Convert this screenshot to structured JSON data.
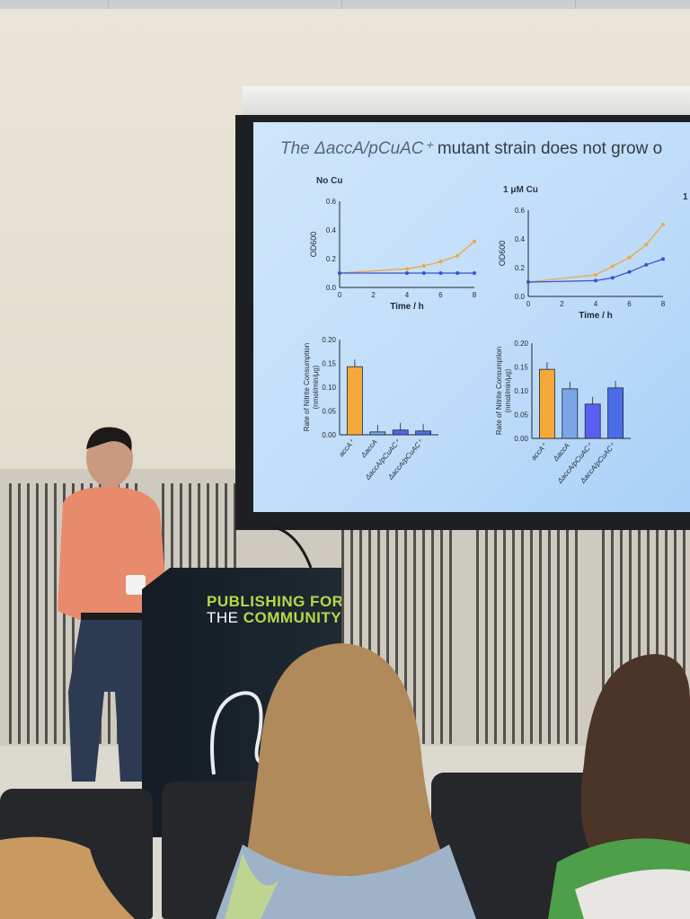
{
  "slide": {
    "title_italic": "The ΔaccA/pCuAC⁺",
    "title_rest": " mutant strain does not grow o",
    "panels": [
      {
        "label": "No Cu"
      },
      {
        "label": "1 μM Cu"
      },
      {
        "label": "1"
      }
    ],
    "line_axis": {
      "ylabel": "OD600",
      "xlabel": "Time / h",
      "yticks": [
        "0.6",
        "0.4",
        "0.2",
        "0.0"
      ],
      "xticks": [
        "0",
        "2",
        "4",
        "6",
        "8"
      ]
    },
    "bar_axis": {
      "ylabel_1": "Rate of Nitrite Consumption",
      "ylabel_2": "(nmol/min/μg)"
    },
    "bar_axis_left_ticks": [
      "0.20",
      "0.15",
      "0.10",
      "0.05",
      "0.00"
    ],
    "bar_axis_right_ticks": [
      "0.20",
      "0.15",
      "0.10",
      "0.05",
      "0.00"
    ],
    "strains": [
      "accA⁺",
      "ΔaccA",
      "ΔaccA/pCuAC⁺",
      "ΔaccA/pCuAC⁺"
    ]
  },
  "podium": {
    "line1": "PUBLISHING FOR",
    "line2_a": "THE ",
    "line2_b": "COMMUNITY"
  },
  "chart_data": [
    {
      "type": "line",
      "title": "No Cu",
      "xlabel": "Time / h",
      "ylabel": "OD600",
      "xlim": [
        0,
        8
      ],
      "ylim": [
        0,
        0.6
      ],
      "series": [
        {
          "values": [
            [
              0,
              0.1
            ],
            [
              4,
              0.13
            ],
            [
              5,
              0.15
            ],
            [
              6,
              0.18
            ],
            [
              7,
              0.22
            ],
            [
              8,
              0.32
            ]
          ],
          "color": "#f0a640"
        },
        {
          "values": [
            [
              0,
              0.1
            ],
            [
              4,
              0.1
            ],
            [
              5,
              0.1
            ],
            [
              6,
              0.1
            ],
            [
              7,
              0.1
            ],
            [
              8,
              0.1
            ]
          ],
          "color": "#3a4fd0"
        }
      ]
    },
    {
      "type": "line",
      "title": "1 μM Cu",
      "xlabel": "Time / h",
      "ylabel": "OD600",
      "xlim": [
        0,
        8
      ],
      "ylim": [
        0,
        0.6
      ],
      "series": [
        {
          "values": [
            [
              0,
              0.1
            ],
            [
              4,
              0.15
            ],
            [
              5,
              0.21
            ],
            [
              6,
              0.27
            ],
            [
              7,
              0.36
            ],
            [
              8,
              0.5
            ]
          ],
          "color": "#f0a640"
        },
        {
          "values": [
            [
              0,
              0.1
            ],
            [
              4,
              0.11
            ],
            [
              5,
              0.13
            ],
            [
              6,
              0.17
            ],
            [
              7,
              0.22
            ],
            [
              8,
              0.26
            ]
          ],
          "color": "#3a4fd0"
        }
      ]
    },
    {
      "type": "bar",
      "title": "No Cu",
      "ylabel": "Rate of Nitrite Consumption (nmol/min/μg)",
      "ylim": [
        0,
        0.2
      ],
      "categories": [
        "accA⁺",
        "ΔaccA",
        "ΔaccA/pCuAC⁺",
        "ΔaccA/pCuAC⁺"
      ],
      "values": [
        0.143,
        0.006,
        0.01,
        0.008
      ],
      "colors": [
        "#f3a93a",
        "#7aa6e8",
        "#5b5ef0",
        "#4b6ee8"
      ]
    },
    {
      "type": "bar",
      "title": "1 μM Cu",
      "ylabel": "Rate of Nitrite Consumption (nmol/min/μg)",
      "ylim": [
        0,
        0.2
      ],
      "categories": [
        "accA⁺",
        "ΔaccA",
        "ΔaccA/pCuAC⁺",
        "ΔaccA/pCuAC⁺"
      ],
      "values": [
        0.145,
        0.104,
        0.072,
        0.106
      ],
      "colors": [
        "#f3a93a",
        "#7aa6e8",
        "#5b5ef0",
        "#4b6ee8"
      ]
    }
  ]
}
